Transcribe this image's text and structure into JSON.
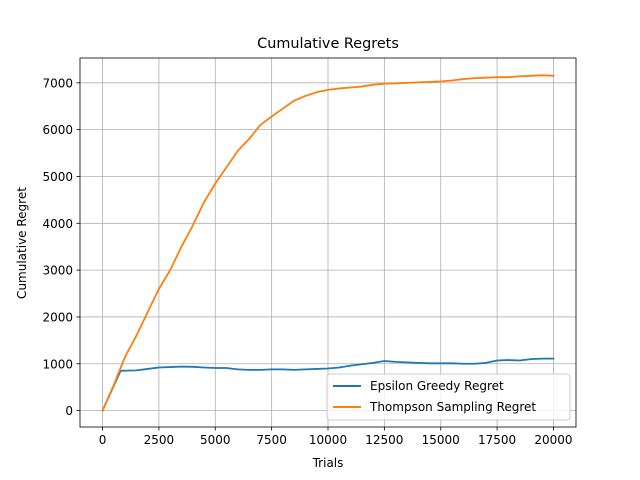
{
  "chart_data": {
    "type": "line",
    "title": "Cumulative Regrets",
    "xlabel": "Trials",
    "ylabel": "Cumulative Regret",
    "xlim": [
      -1000,
      21000
    ],
    "ylim": [
      -350,
      7530
    ],
    "x_ticks": [
      0,
      2500,
      5000,
      7500,
      10000,
      12500,
      15000,
      17500,
      20000
    ],
    "y_ticks": [
      0,
      1000,
      2000,
      3000,
      4000,
      5000,
      6000,
      7000
    ],
    "grid": true,
    "legend_position": "lower-right",
    "series": [
      {
        "name": "Epsilon Greedy Regret",
        "color": "#1f77b4",
        "x": [
          0,
          800,
          1500,
          2000,
          2500,
          3000,
          3500,
          4000,
          4500,
          5000,
          5500,
          6000,
          6500,
          7000,
          7500,
          8000,
          8500,
          9000,
          9500,
          10000,
          10500,
          11000,
          11500,
          12000,
          12500,
          13000,
          13500,
          14000,
          14500,
          15000,
          15500,
          16000,
          16500,
          17000,
          17500,
          18000,
          18500,
          19000,
          19500,
          20000
        ],
        "y": [
          0,
          850,
          860,
          890,
          920,
          930,
          940,
          935,
          920,
          910,
          910,
          880,
          870,
          870,
          880,
          880,
          870,
          880,
          890,
          900,
          920,
          960,
          990,
          1020,
          1060,
          1040,
          1030,
          1020,
          1010,
          1010,
          1010,
          1000,
          1000,
          1020,
          1070,
          1080,
          1070,
          1100,
          1110,
          1110
        ]
      },
      {
        "name": "Thompson Sampling Regret",
        "color": "#ff7f0e",
        "x": [
          0,
          500,
          1000,
          1500,
          2000,
          2500,
          3000,
          3500,
          4000,
          4500,
          5000,
          5500,
          6000,
          6500,
          7000,
          7500,
          8000,
          8500,
          9000,
          9500,
          10000,
          10500,
          11000,
          11500,
          12000,
          12500,
          13000,
          13500,
          14000,
          14500,
          15000,
          15500,
          16000,
          16500,
          17000,
          17500,
          18000,
          18500,
          19000,
          19500,
          20000
        ],
        "y": [
          0,
          550,
          1150,
          1600,
          2100,
          2600,
          3000,
          3500,
          3950,
          4450,
          4850,
          5200,
          5550,
          5800,
          6100,
          6280,
          6450,
          6620,
          6720,
          6800,
          6850,
          6880,
          6900,
          6920,
          6960,
          6980,
          6990,
          7000,
          7010,
          7020,
          7030,
          7050,
          7080,
          7100,
          7110,
          7120,
          7120,
          7140,
          7150,
          7160,
          7150
        ]
      }
    ]
  }
}
